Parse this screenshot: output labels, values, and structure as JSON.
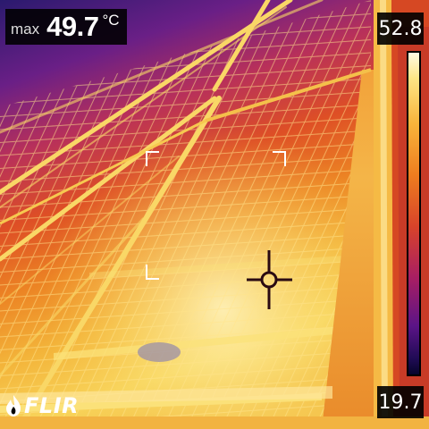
{
  "readout": {
    "max_label": "max",
    "max_value": "49.7",
    "max_unit": "°C"
  },
  "scale": {
    "max": "52.8",
    "min": "19.7",
    "palette": "iron"
  },
  "logo": {
    "text": "FLIR",
    "icon": "flir-flame-icon"
  },
  "icons": {
    "spot_meter": "crosshair-spot-icon",
    "measurement_box": "corner-bracket-icon"
  },
  "colors": {
    "hot": "#fff4b4",
    "warm": "#f09a2a",
    "mid": "#d9452a",
    "cool": "#7a1a7d",
    "cold": "#1e1563"
  }
}
